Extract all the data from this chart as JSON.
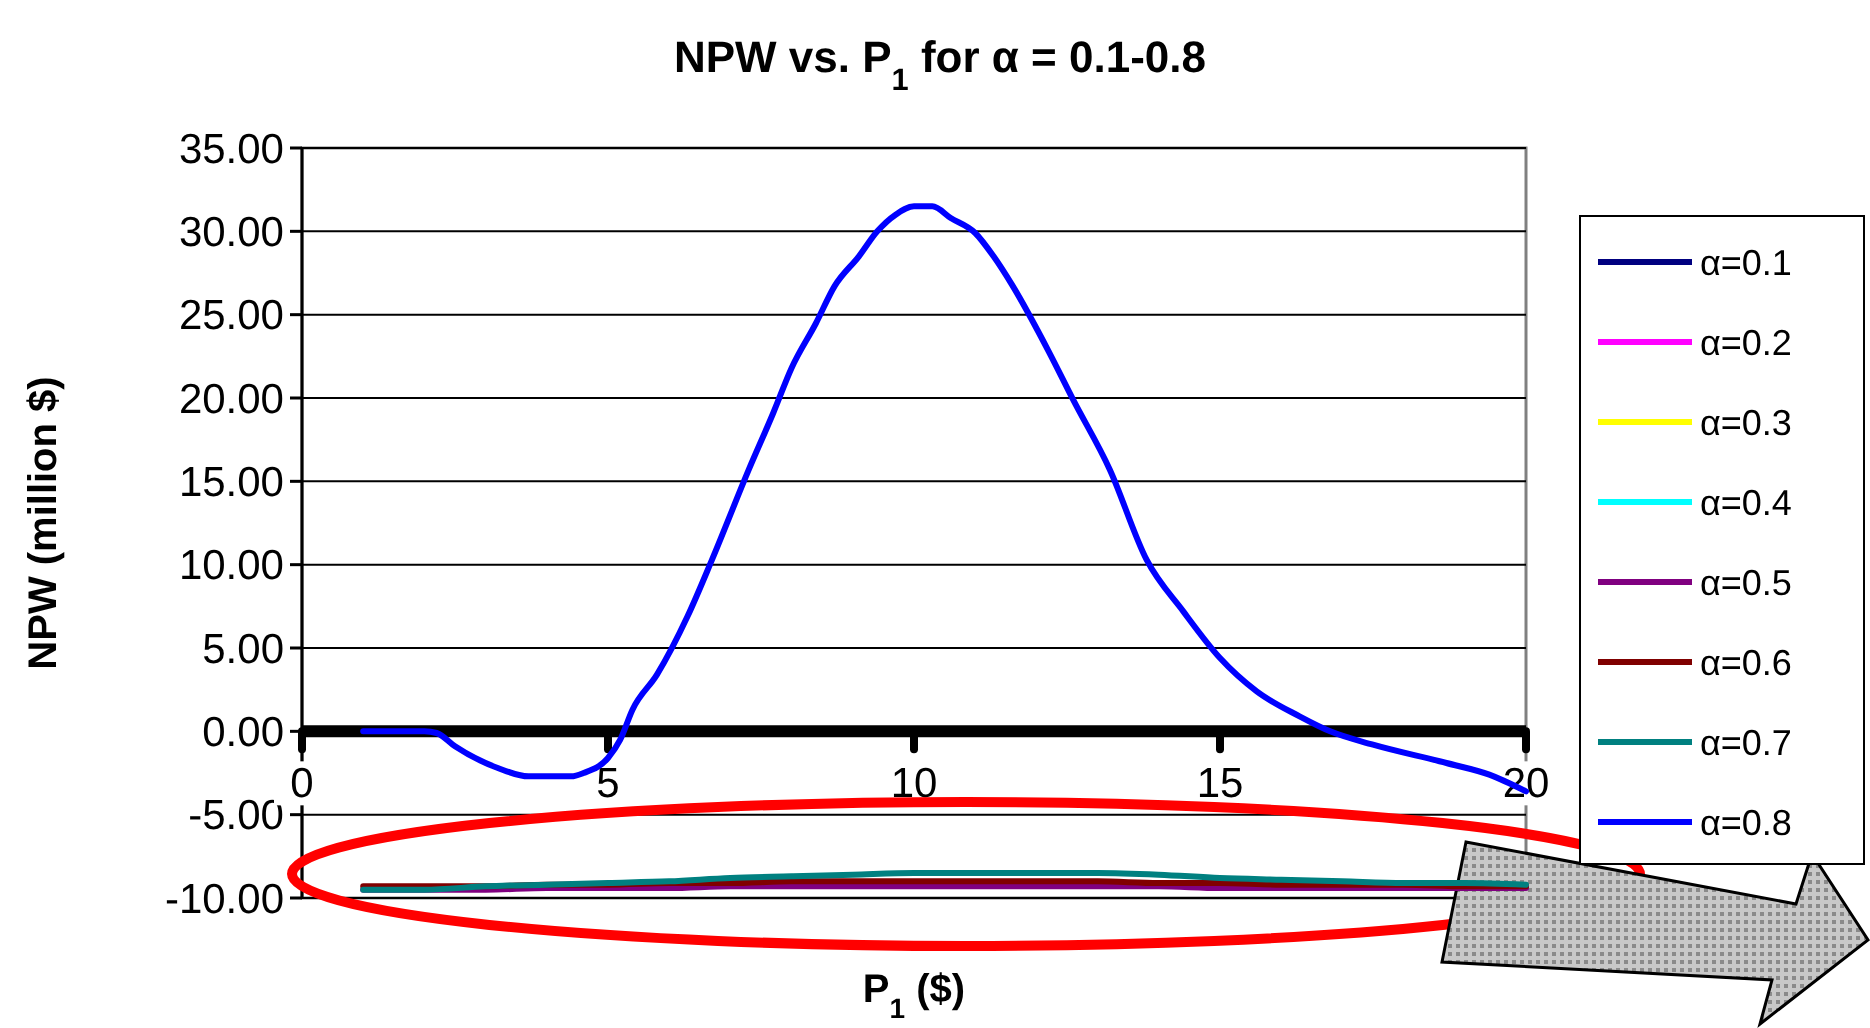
{
  "chart_data": {
    "type": "line",
    "title": "NPW vs. P$_{1}$ for α = 0.1-0.8",
    "xlabel": "P$_{1}$ ($)",
    "ylabel": "NPW  (million $)",
    "xlim": [
      0,
      20
    ],
    "xticks": [
      0,
      5,
      10,
      15,
      20
    ],
    "ylim": [
      -10,
      35
    ],
    "yticks": [
      {
        "value": -10,
        "label": "-10.00"
      },
      {
        "value": -5,
        "label": "-5.00"
      },
      {
        "value": 0,
        "label": "0.00"
      },
      {
        "value": 5,
        "label": "5.00"
      },
      {
        "value": 10,
        "label": "10.00"
      },
      {
        "value": 15,
        "label": "15.00"
      },
      {
        "value": 20,
        "label": "20.00"
      },
      {
        "value": 25,
        "label": "25.00"
      },
      {
        "value": 30,
        "label": "30.00"
      },
      {
        "value": 35,
        "label": "35.00"
      }
    ],
    "grid": "y",
    "legend": "right",
    "marker": "none",
    "line_style": "solid",
    "x": [
      1,
      2,
      3,
      4,
      5,
      6,
      7,
      8,
      9,
      10,
      11,
      12,
      13,
      14,
      15,
      16,
      17,
      18,
      19,
      20
    ],
    "series": [
      {
        "name": "α=0.1",
        "color": "#000080",
        "values": [
          null,
          null,
          null,
          null,
          null,
          null,
          null,
          null,
          null,
          null,
          null,
          null,
          null,
          null,
          null,
          null,
          null,
          null,
          null,
          null
        ]
      },
      {
        "name": "α=0.2",
        "color": "#ff00ff",
        "values": [
          null,
          null,
          null,
          null,
          null,
          null,
          null,
          null,
          null,
          null,
          null,
          null,
          null,
          null,
          null,
          null,
          null,
          null,
          null,
          null
        ]
      },
      {
        "name": "α=0.3",
        "color": "#ffff00",
        "values": [
          null,
          null,
          null,
          null,
          null,
          null,
          null,
          null,
          null,
          null,
          null,
          null,
          null,
          null,
          null,
          null,
          null,
          null,
          null,
          null
        ]
      },
      {
        "name": "α=0.4",
        "color": "#00ffff",
        "values": [
          null,
          null,
          null,
          null,
          null,
          null,
          null,
          null,
          null,
          null,
          null,
          null,
          null,
          null,
          null,
          null,
          null,
          null,
          null,
          null
        ]
      },
      {
        "name": "α=0.5",
        "color": "#800080",
        "values": [
          -9.5,
          -9.5,
          -9.5,
          -9.4,
          -9.4,
          -9.4,
          -9.3,
          -9.3,
          -9.3,
          -9.3,
          -9.3,
          -9.3,
          -9.3,
          -9.3,
          -9.4,
          -9.4,
          -9.4,
          -9.4,
          -9.4,
          -9.4
        ]
      },
      {
        "name": "α=0.6",
        "color": "#800000",
        "values": [
          -9.3,
          -9.3,
          -9.3,
          -9.2,
          -9.2,
          -9.1,
          -9.1,
          -9.0,
          -9.0,
          -9.0,
          -9.0,
          -9.0,
          -9.0,
          -9.1,
          -9.1,
          -9.2,
          -9.2,
          -9.2,
          -9.3,
          -9.3
        ]
      },
      {
        "name": "α=0.7",
        "color": "#008080",
        "values": [
          -9.5,
          -9.5,
          -9.3,
          -9.2,
          -9.1,
          -9.0,
          -8.8,
          -8.7,
          -8.6,
          -8.5,
          -8.5,
          -8.5,
          -8.5,
          -8.6,
          -8.8,
          -8.9,
          -9.0,
          -9.1,
          -9.1,
          -9.2
        ]
      },
      {
        "name": "α=0.8",
        "color": "#0000ff",
        "x": [
          1,
          2,
          2.2,
          2.5,
          3.2,
          3.7,
          4.4,
          4.6,
          5.0,
          5.2,
          5.4,
          5.8,
          6.3,
          6.7,
          7.3,
          7.7,
          8.0,
          8.4,
          8.7,
          9.1,
          9.4,
          9.7,
          10.0,
          10.3,
          10.6,
          11.0,
          11.3,
          11.6,
          12.2,
          12.6,
          13.2,
          13.8,
          14.4,
          15.0,
          15.6,
          16.3,
          16.8,
          17.5,
          18.7,
          19.4,
          20
        ],
        "values": [
          0,
          0,
          -0.1,
          -0.9,
          -2.2,
          -2.7,
          -2.7,
          -2.5,
          -1.6,
          -0.5,
          1.3,
          3.4,
          6.9,
          10.3,
          15.7,
          19.1,
          21.8,
          24.5,
          26.7,
          28.5,
          30.0,
          31.0,
          31.5,
          31.5,
          30.8,
          29.9,
          28.5,
          26.8,
          22.8,
          19.9,
          15.7,
          10.3,
          7.2,
          4.4,
          2.4,
          0.9,
          0,
          -0.8,
          -1.9,
          -2.6,
          -3.6
        ]
      }
    ]
  }
}
